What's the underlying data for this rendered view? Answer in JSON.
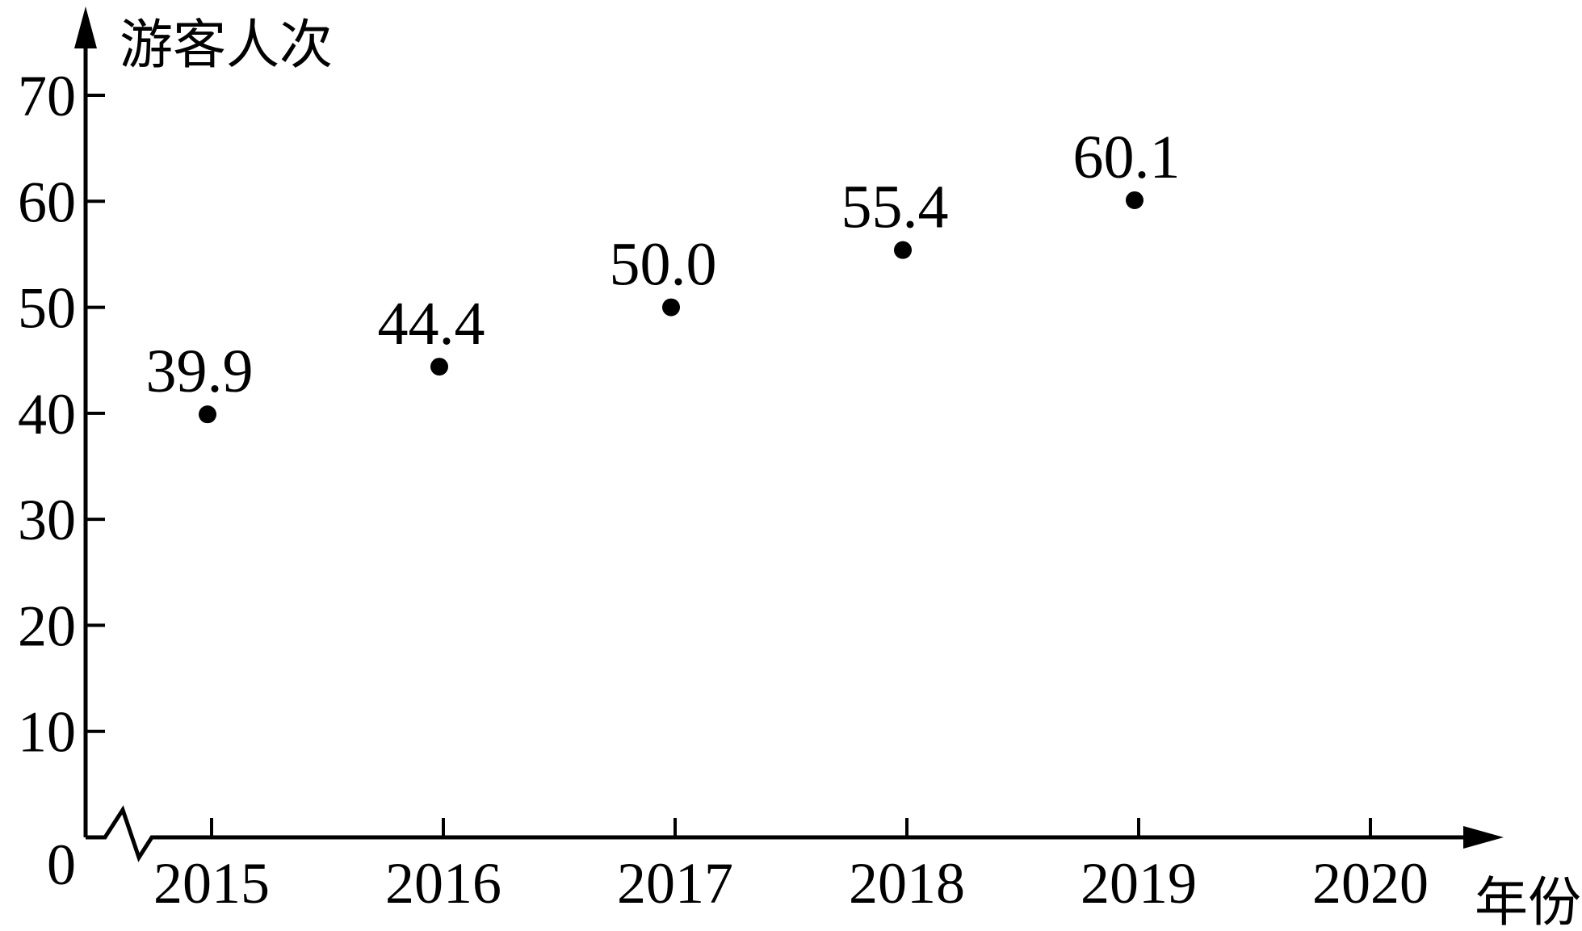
{
  "chart_data": {
    "type": "scatter",
    "title": "",
    "xlabel": "年份",
    "ylabel": "游客人次",
    "origin_label": "0",
    "x_ticks": [
      "2015",
      "2016",
      "2017",
      "2018",
      "2019",
      "2020"
    ],
    "y_ticks": [
      "10",
      "20",
      "30",
      "40",
      "50",
      "60",
      "70"
    ],
    "ylim": [
      0,
      70
    ],
    "x": [
      "2015",
      "2016",
      "2017",
      "2018",
      "2019"
    ],
    "values": [
      39.9,
      44.4,
      50.0,
      55.4,
      60.1
    ],
    "labels": [
      "39.9",
      "44.4",
      "50.0",
      "55.4",
      "60.1"
    ],
    "axis_break": true,
    "grid": false,
    "legend": "none"
  }
}
